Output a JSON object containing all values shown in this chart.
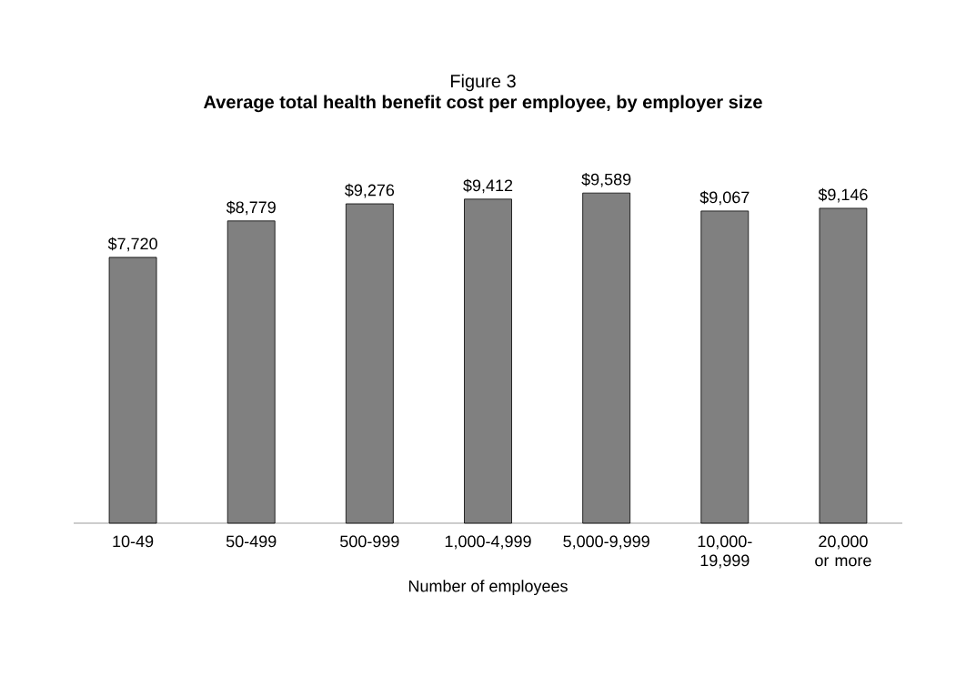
{
  "chart_data": {
    "type": "bar",
    "title": "Figure 3",
    "subtitle": "**Average total health benefit cost per employee, by employer size**",
    "xlabel": "Number of employees",
    "categories": [
      "10-49",
      "50-499",
      "500-999",
      "1,000-4,999",
      "5,000-9,999",
      "10,000-19,999",
      "20,000 or more"
    ],
    "values": [
      7720,
      8779,
      9276,
      9412,
      9589,
      9067,
      9146
    ],
    "value_labels": [
      "$7,720",
      "$8,779",
      "$9,276",
      "$9,412",
      "$9,589",
      "$9,067",
      "$9,146"
    ],
    "color": "#808080",
    "tick_labels": "x"
  }
}
